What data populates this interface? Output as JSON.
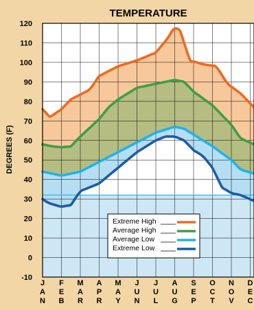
{
  "chart_data": {
    "type": "area",
    "title": "TEMPERATURE",
    "ylabel": "DEGREES (F)",
    "ylim": [
      -10,
      120
    ],
    "yticks": [
      "120",
      "110",
      "100",
      "90",
      "80",
      "70",
      "60",
      "50",
      "40",
      "30",
      "20",
      "10",
      "0",
      "-10"
    ],
    "freezing_line": 32,
    "categories": [
      "JAN",
      "FEB",
      "MAR",
      "APR",
      "MAY",
      "JUN",
      "JUL",
      "AUG",
      "SEP",
      "OCT",
      "NOV",
      "DEC"
    ],
    "month_letters": [
      [
        "J",
        "A",
        "N"
      ],
      [
        "F",
        "E",
        "B"
      ],
      [
        "M",
        "A",
        "R"
      ],
      [
        "A",
        "P",
        "R"
      ],
      [
        "M",
        "A",
        "Y"
      ],
      [
        "J",
        "U",
        "N"
      ],
      [
        "J",
        "U",
        "L"
      ],
      [
        "A",
        "U",
        "G"
      ],
      [
        "S",
        "E",
        "P"
      ],
      [
        "O",
        "C",
        "T"
      ],
      [
        "N",
        "O",
        "V"
      ],
      [
        "D",
        "E",
        "C"
      ]
    ],
    "series": [
      {
        "name": "Extreme High",
        "color": "#ee6a22",
        "x": [
          0,
          0.4,
          1,
          1.5,
          2.5,
          3,
          4,
          5,
          6,
          6.6,
          7,
          7.3,
          7.8,
          8.5,
          9.2,
          9.8,
          10.5,
          11.2
        ],
        "values": [
          76,
          72,
          76,
          81,
          86,
          93,
          98,
          101,
          105,
          112,
          118,
          116,
          101,
          99,
          98,
          89,
          84,
          77
        ]
      },
      {
        "name": "Average High",
        "color": "#3f9e44",
        "x": [
          0,
          0.5,
          1,
          1.5,
          2,
          3,
          3.5,
          4,
          5,
          6,
          7,
          7.5,
          8,
          9,
          10,
          10.5,
          11.2
        ],
        "values": [
          58,
          57,
          56.5,
          57,
          62,
          71,
          77,
          81,
          87,
          89,
          91,
          90,
          85,
          78,
          68,
          61,
          58
        ]
      },
      {
        "name": "Average Low",
        "color": "#1eb3ec",
        "x": [
          0,
          0.5,
          1,
          2,
          3,
          4,
          5,
          6,
          7,
          7.5,
          8,
          9,
          10,
          10.5,
          11.2
        ],
        "values": [
          44,
          43,
          42,
          44,
          49,
          54,
          59,
          64,
          67,
          66,
          63,
          57,
          50,
          45,
          43
        ]
      },
      {
        "name": "Extreme Low",
        "color": "#1a5ca8",
        "x": [
          0,
          0.3,
          1,
          1.5,
          2,
          2.5,
          3,
          4,
          5,
          6,
          6.5,
          7,
          7.5,
          8,
          8.5,
          9,
          9.5,
          10,
          10.5,
          11.2
        ],
        "values": [
          30,
          28,
          26,
          27,
          34,
          36,
          38,
          46,
          54,
          60,
          62,
          62,
          60,
          55,
          52,
          46,
          36,
          33,
          32,
          29
        ]
      }
    ],
    "legend_position": "bottom-center",
    "colors": {
      "background": "#f2d6a6",
      "plot_background": "#ffffff",
      "below_freezing_fill": "#cde7f5",
      "extreme_band": "#f7c89b",
      "average_band": "#b6bd83",
      "low_band": "#b6def3",
      "grid": "#000000"
    }
  }
}
